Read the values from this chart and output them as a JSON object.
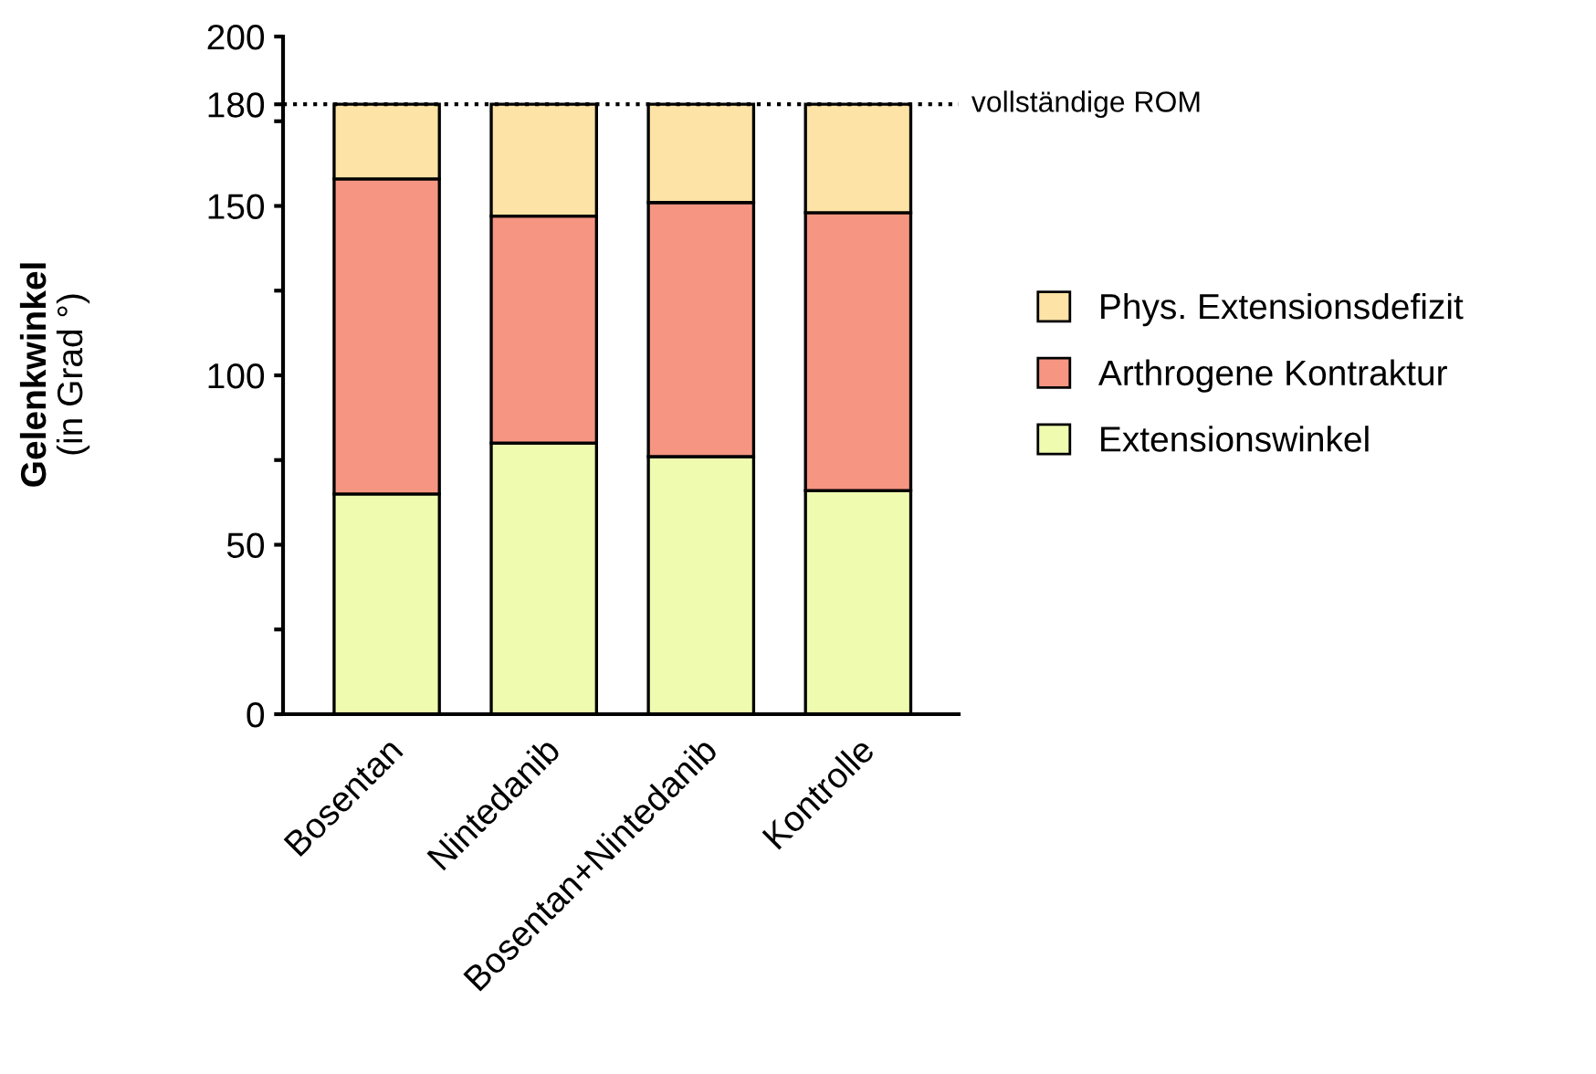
{
  "chart_data": {
    "type": "bar",
    "stacked": true,
    "ylabel": "Gelenkwinkel\n(in Grad °)",
    "categories": [
      "Bosentan",
      "Nintedanib",
      "Bosentan+Nintedanib",
      "Kontrolle"
    ],
    "series": [
      {
        "name": "Extensionswinkel",
        "color": "#effcb0",
        "values": [
          65,
          80,
          76,
          66
        ]
      },
      {
        "name": "Arthrogene Kontraktur",
        "color": "#f69582",
        "values": [
          93,
          67,
          75,
          82
        ]
      },
      {
        "name": "Phys. Extensionsdefizit",
        "color": "#fde3a5",
        "values": [
          22,
          33,
          29,
          32
        ]
      }
    ],
    "ylim": [
      0,
      200
    ],
    "yticks": [
      0,
      {
        "value": 25,
        "label": null
      },
      50,
      {
        "value": 75,
        "label": null
      },
      100,
      {
        "value": 125,
        "label": null
      },
      150,
      {
        "value": 175,
        "label": null
      },
      180,
      200
    ],
    "ref_lines": [
      {
        "axis": "y",
        "value": 180,
        "label": "vollständige ROM",
        "line_style": "dotted",
        "color": "#000000"
      }
    ],
    "legend": "right",
    "grid": false
  }
}
